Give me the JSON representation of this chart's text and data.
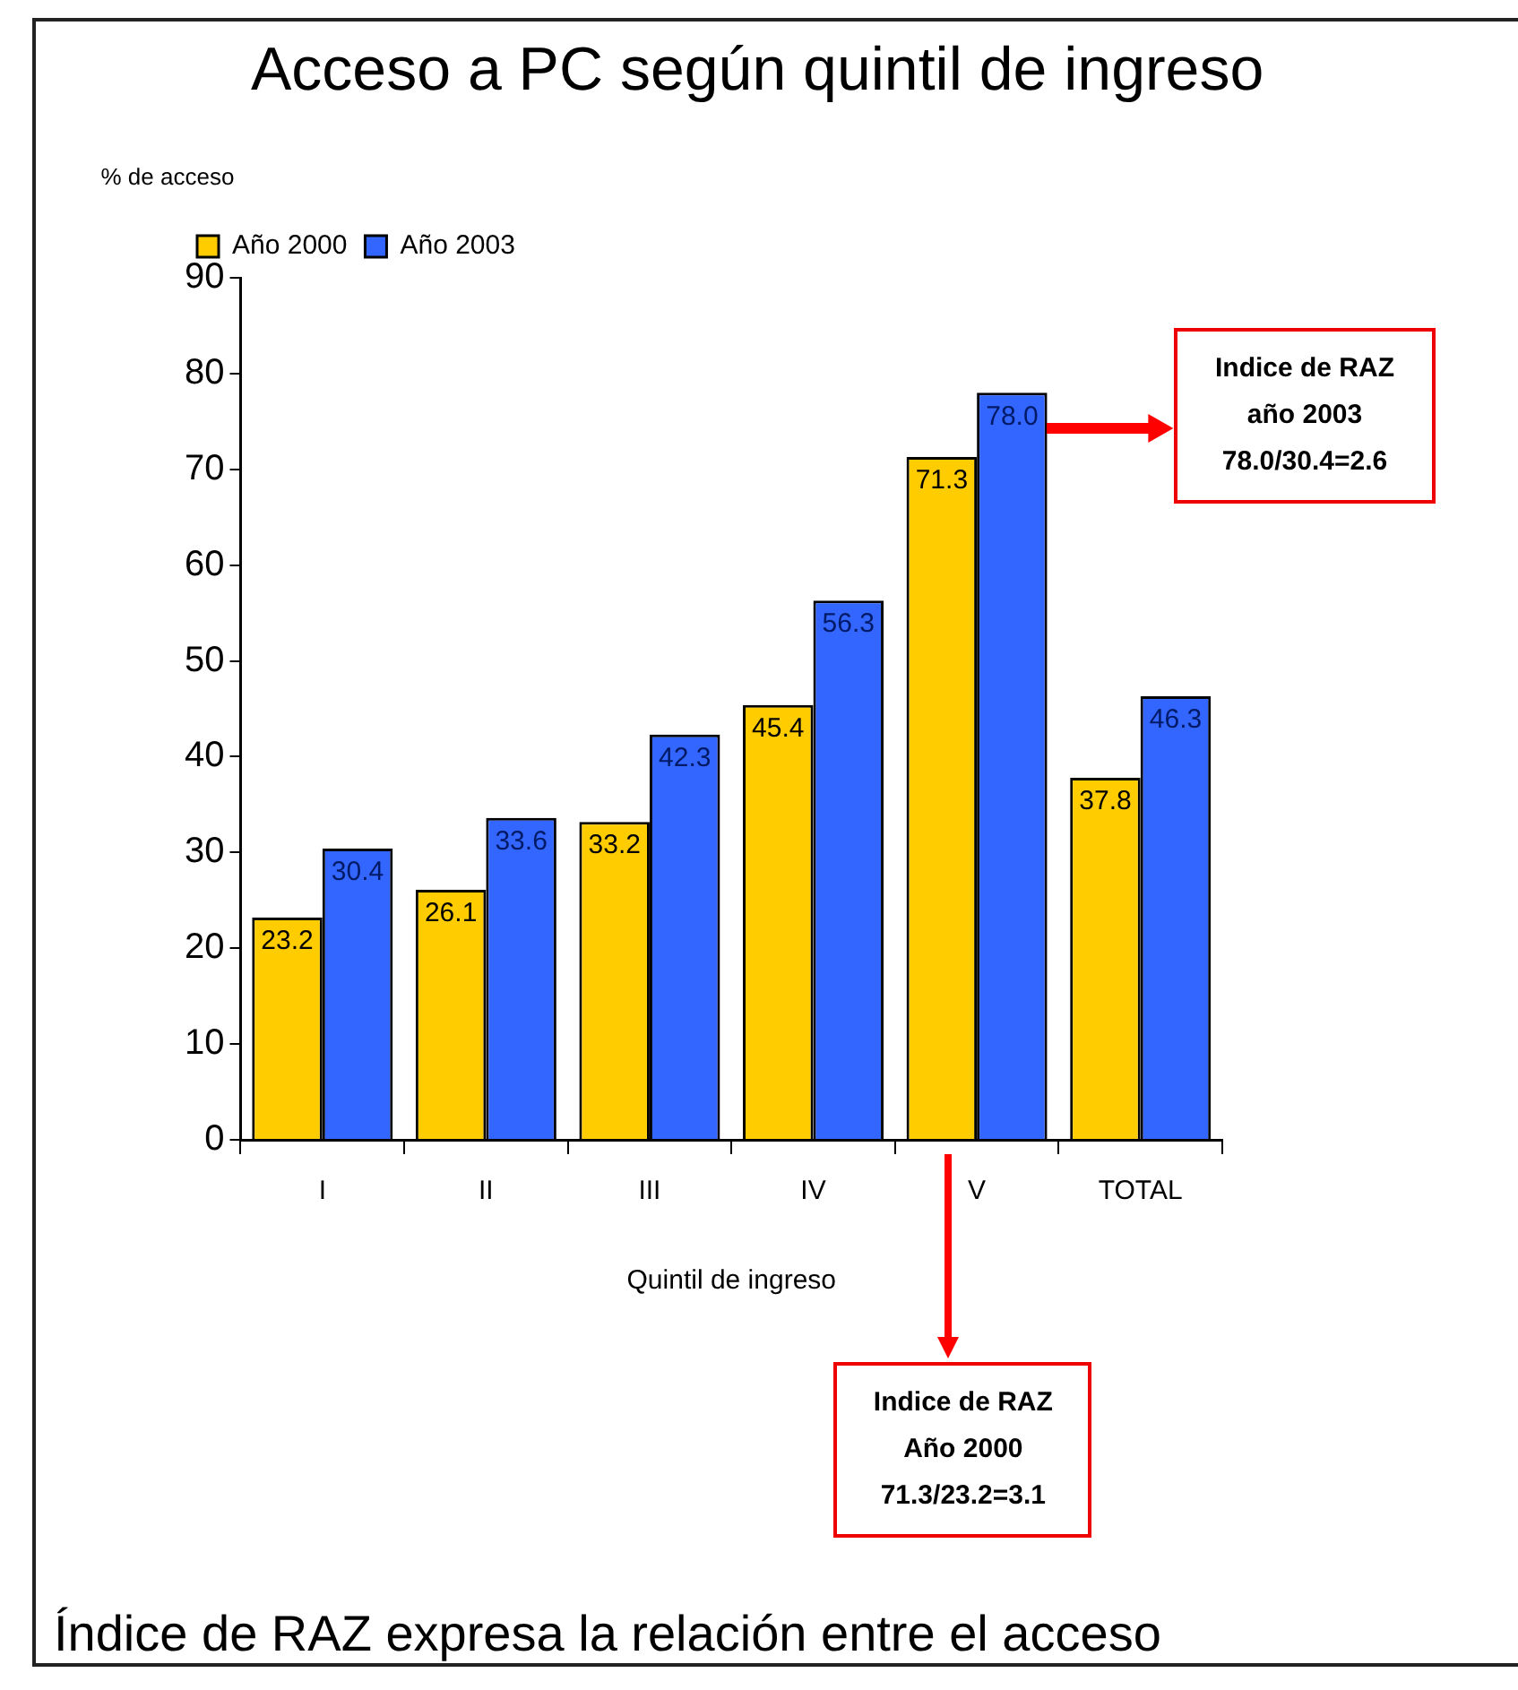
{
  "chart_data": {
    "type": "bar",
    "title": "Acceso a PC según quintil de ingreso",
    "xlabel": "Quintil de ingreso",
    "ylabel": "% de acceso",
    "categories": [
      "I",
      "II",
      "III",
      "IV",
      "V",
      "TOTAL"
    ],
    "series": [
      {
        "name": "Año 2000",
        "color": "#ffcc00",
        "values": [
          23.2,
          26.1,
          33.2,
          45.4,
          71.3,
          37.8
        ]
      },
      {
        "name": "Año 2003",
        "color": "#3366ff",
        "values": [
          30.4,
          33.6,
          42.3,
          56.3,
          78.0,
          46.3
        ]
      }
    ],
    "value_labels": [
      [
        "23.2",
        "26.1",
        "33.2",
        "45.4",
        "71.3",
        "37.8"
      ],
      [
        "30.4",
        "33.6",
        "42.3",
        "56.3",
        "78.0",
        "46.3"
      ]
    ],
    "ylim": [
      0,
      90
    ],
    "yticks": [
      0,
      10,
      20,
      30,
      40,
      50,
      60,
      70,
      80,
      90
    ],
    "grid": false,
    "legend": "top left",
    "annotations": [
      "Indice de RAZ\naño 2003\n78.0/30.4=2.6",
      "Indice de RAZ\nAño 2000\n71.3/23.2=3.1",
      "Índice de RAZ expresa la relación entre el acceso"
    ]
  }
}
